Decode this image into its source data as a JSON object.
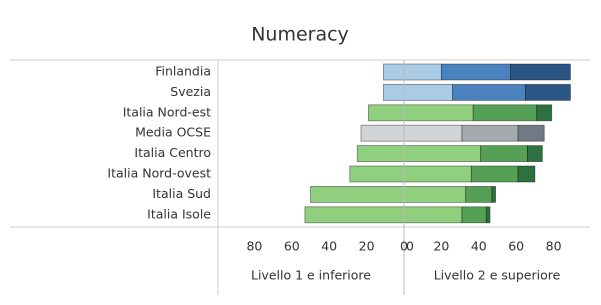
{
  "chart_data": {
    "type": "diverging-bar",
    "title": "Numeracy",
    "categories": [
      "Finlandia",
      "Svezia",
      "Italia Nord-est",
      "Media OCSE",
      "Italia Centro",
      "Italia Nord-ovest",
      "Italia Sud",
      "Italia Isole"
    ],
    "series": [
      {
        "axis": "x",
        "values": [
          11,
          11,
          19,
          23,
          25,
          29,
          50,
          53
        ],
        "colors": [
          "#a9cbe6",
          "#a9cbe6",
          "#90cf7e",
          "#d2d5d8",
          "#90cf7e",
          "#90cf7e",
          "#90cf7e",
          "#90cf7e"
        ]
      },
      {
        "axis": "x2",
        "values": [
          20,
          26,
          37,
          31,
          41,
          36,
          33,
          31
        ],
        "colors": [
          "#a9cbe6",
          "#a9cbe6",
          "#90cf7e",
          "#d2d5d8",
          "#90cf7e",
          "#90cf7e",
          "#90cf7e",
          "#90cf7e"
        ]
      },
      {
        "axis": "x2",
        "values": [
          37,
          39,
          34,
          30,
          25,
          25,
          14,
          13
        ],
        "colors": [
          "#4a82bf",
          "#4a82bf",
          "#55a055",
          "#a5aaae",
          "#55a055",
          "#55a055",
          "#55a055",
          "#55a055"
        ]
      },
      {
        "axis": "x2",
        "values": [
          32,
          24,
          8,
          14,
          8,
          9,
          2,
          2
        ],
        "colors": [
          "#2a5585",
          "#2a5585",
          "#2f7040",
          "#6f7a85",
          "#2f7040",
          "#2f7040",
          "#2f7040",
          "#2f7040"
        ]
      }
    ],
    "xlim": [
      100,
      0
    ],
    "xticks": [
      80,
      60,
      40,
      20,
      0
    ],
    "xlabel": "Livello 1 e inferiore",
    "x2lim": [
      0,
      100
    ],
    "x2ticks": [
      0,
      20,
      40,
      60,
      80
    ],
    "x2label": "Livello 2 e superiore"
  }
}
